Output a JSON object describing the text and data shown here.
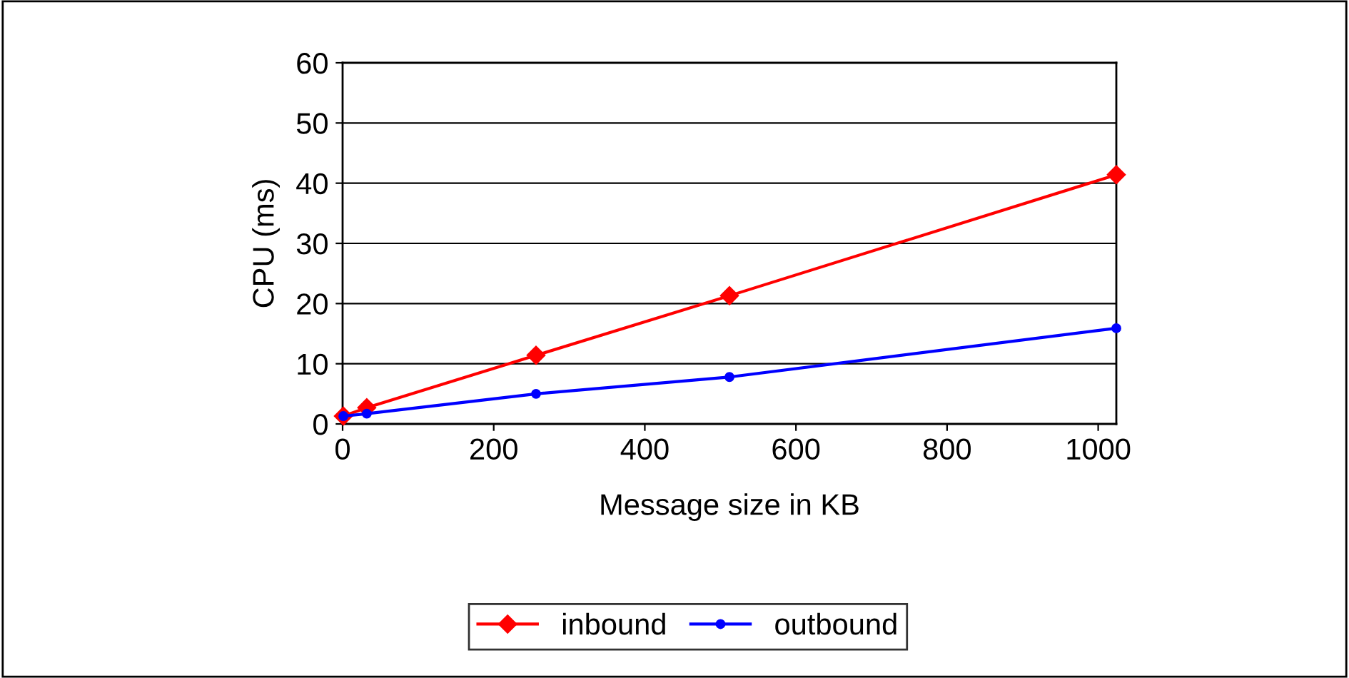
{
  "chart_data": {
    "type": "line",
    "xlabel": "Message size in KB",
    "ylabel": "CPU (ms)",
    "x": [
      1,
      32,
      256,
      512,
      1024
    ],
    "series": [
      {
        "name": "inbound",
        "color": "#ff0000",
        "marker": "diamond",
        "values": [
          1.3,
          2.7,
          11.4,
          21.3,
          41.4
        ]
      },
      {
        "name": "outbound",
        "color": "#0000ff",
        "marker": "circle",
        "values": [
          1.3,
          1.7,
          5.0,
          7.8,
          15.9
        ]
      }
    ],
    "xlim": [
      0,
      1024
    ],
    "xticks": [
      0,
      200,
      400,
      600,
      800,
      1000
    ],
    "ylim": [
      0,
      60
    ],
    "yticks": [
      0,
      10,
      20,
      30,
      40,
      50,
      60
    ],
    "grid": "y",
    "legend": "bottom",
    "line_style": "solid"
  }
}
